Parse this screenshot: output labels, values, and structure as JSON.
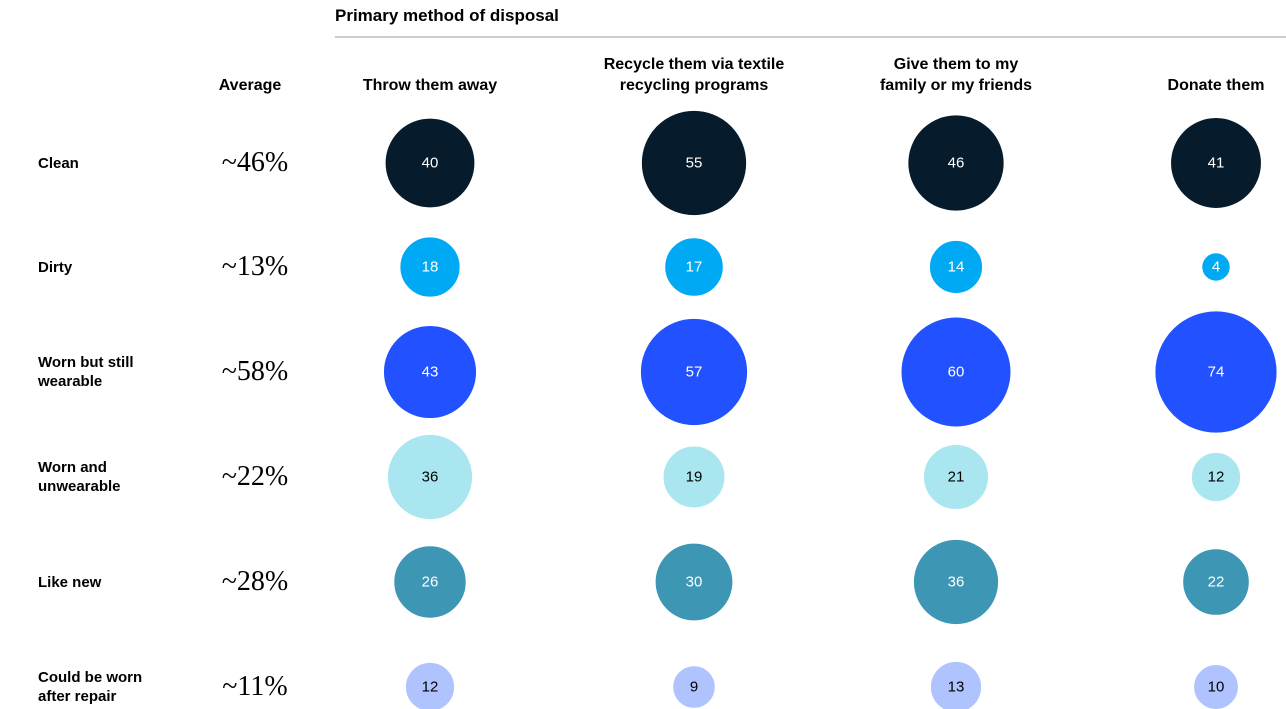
{
  "chart_data": {
    "type": "bubble",
    "title": "Primary method of disposal",
    "average_header": "Average",
    "categories": [
      "Throw them away",
      "Recycle them via textile recycling programs",
      "Give them to my family or my friends",
      "Donate them"
    ],
    "rows": [
      "Clean",
      "Dirty",
      "Worn but still wearable",
      "Worn and unwearable",
      "Like new",
      "Could be worn after repair"
    ],
    "averages": {
      "values": [
        46,
        13,
        58,
        22,
        28,
        11
      ],
      "value_labels": [
        "~46%",
        "~13%",
        "~58%",
        "~22%",
        "~28%",
        "~11%"
      ]
    },
    "series": [
      {
        "name": "Clean",
        "color": "#061c2c",
        "values": [
          40,
          55,
          46,
          41
        ]
      },
      {
        "name": "Dirty",
        "color": "#00a9f4",
        "values": [
          18,
          17,
          14,
          4
        ]
      },
      {
        "name": "Worn but still wearable",
        "color": "#2251ff",
        "values": [
          43,
          57,
          60,
          74
        ]
      },
      {
        "name": "Worn and unwearable",
        "color": "#aae6f0",
        "values": [
          36,
          19,
          21,
          12
        ]
      },
      {
        "name": "Like new",
        "color": "#3c96b4",
        "values": [
          26,
          30,
          36,
          22
        ]
      },
      {
        "name": "Could be worn after repair",
        "color": "#afc3ff",
        "values": [
          12,
          9,
          13,
          10
        ]
      }
    ]
  }
}
